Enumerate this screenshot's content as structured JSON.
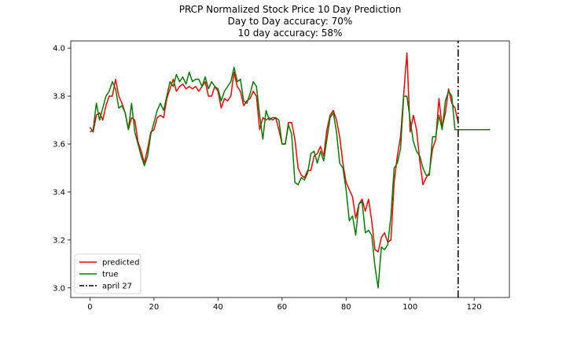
{
  "chart_data": {
    "type": "line",
    "title_lines": [
      "PRCP Normalized Stock Price 10 Day Prediction",
      "Day to Day accuracy: 70%",
      "10 day accuracy: 58%"
    ],
    "xlabel": "",
    "ylabel": "",
    "xlim": [
      -6,
      131
    ],
    "ylim": [
      2.96,
      4.03
    ],
    "x_ticks": [
      0,
      20,
      40,
      60,
      80,
      100,
      120
    ],
    "y_ticks": [
      3.0,
      3.2,
      3.4,
      3.6,
      3.8,
      4.0
    ],
    "x_tick_labels": [
      "0",
      "20",
      "40",
      "60",
      "80",
      "100",
      "120"
    ],
    "y_tick_labels": [
      "3.0",
      "3.2",
      "3.4",
      "3.6",
      "3.8",
      "4.0"
    ],
    "grid": false,
    "legend_position": "lower-left",
    "series": [
      {
        "name": "predicted",
        "color": "#ff0000",
        "style": "solid",
        "x": [
          0,
          1,
          2,
          3,
          4,
          5,
          6,
          7,
          8,
          9,
          10,
          11,
          12,
          13,
          14,
          15,
          16,
          17,
          18,
          19,
          20,
          21,
          22,
          23,
          24,
          25,
          26,
          27,
          28,
          29,
          30,
          31,
          32,
          33,
          34,
          35,
          36,
          37,
          38,
          39,
          40,
          41,
          42,
          43,
          44,
          45,
          46,
          47,
          48,
          49,
          50,
          51,
          52,
          53,
          54,
          55,
          56,
          57,
          58,
          59,
          60,
          61,
          62,
          63,
          64,
          65,
          66,
          67,
          68,
          69,
          70,
          71,
          72,
          73,
          74,
          75,
          76,
          77,
          78,
          79,
          80,
          81,
          82,
          83,
          84,
          85,
          86,
          87,
          88,
          89,
          90,
          91,
          92,
          93,
          94,
          95,
          96,
          97,
          98,
          99,
          100,
          101,
          102,
          103,
          104,
          105,
          106,
          107,
          108,
          109,
          110,
          111,
          112,
          113,
          114,
          115
        ],
        "y": [
          3.67,
          3.65,
          3.72,
          3.73,
          3.7,
          3.76,
          3.8,
          3.8,
          3.87,
          3.8,
          3.77,
          3.73,
          3.66,
          3.71,
          3.7,
          3.61,
          3.57,
          3.52,
          3.58,
          3.65,
          3.66,
          3.71,
          3.72,
          3.71,
          3.79,
          3.83,
          3.87,
          3.82,
          3.84,
          3.85,
          3.83,
          3.84,
          3.83,
          3.84,
          3.82,
          3.84,
          3.86,
          3.8,
          3.8,
          3.84,
          3.82,
          3.75,
          3.79,
          3.78,
          3.8,
          3.9,
          3.84,
          3.82,
          3.76,
          3.78,
          3.79,
          3.82,
          3.8,
          3.66,
          3.71,
          3.7,
          3.71,
          3.7,
          3.71,
          3.66,
          3.6,
          3.6,
          3.69,
          3.69,
          3.62,
          3.5,
          3.47,
          3.46,
          3.49,
          3.49,
          3.55,
          3.56,
          3.59,
          3.55,
          3.66,
          3.72,
          3.74,
          3.7,
          3.63,
          3.52,
          3.44,
          3.41,
          3.38,
          3.29,
          3.35,
          3.37,
          3.32,
          3.37,
          3.28,
          3.16,
          3.15,
          3.21,
          3.23,
          3.19,
          3.2,
          3.44,
          3.55,
          3.63,
          3.81,
          3.98,
          3.65,
          3.72,
          3.66,
          3.53,
          3.43,
          3.46,
          3.48,
          3.58,
          3.62,
          3.79,
          3.67,
          3.73,
          3.83,
          3.77,
          3.75,
          3.69
        ]
      },
      {
        "name": "true",
        "color": "#008000",
        "style": "solid",
        "x": [
          0,
          1,
          2,
          3,
          4,
          5,
          6,
          7,
          8,
          9,
          10,
          11,
          12,
          13,
          14,
          15,
          16,
          17,
          18,
          19,
          20,
          21,
          22,
          23,
          24,
          25,
          26,
          27,
          28,
          29,
          30,
          31,
          32,
          33,
          34,
          35,
          36,
          37,
          38,
          39,
          40,
          41,
          42,
          43,
          44,
          45,
          46,
          47,
          48,
          49,
          50,
          51,
          52,
          53,
          54,
          55,
          56,
          57,
          58,
          59,
          60,
          61,
          62,
          63,
          64,
          65,
          66,
          67,
          68,
          69,
          70,
          71,
          72,
          73,
          74,
          75,
          76,
          77,
          78,
          79,
          80,
          81,
          82,
          83,
          84,
          85,
          86,
          87,
          88,
          89,
          90,
          91,
          92,
          93,
          94,
          95,
          96,
          97,
          98,
          99,
          100,
          101,
          102,
          103,
          104,
          105,
          106,
          107,
          108,
          109,
          110,
          111,
          112,
          113,
          114,
          115,
          125
        ],
        "y": [
          3.65,
          3.66,
          3.77,
          3.7,
          3.75,
          3.8,
          3.82,
          3.86,
          3.83,
          3.75,
          3.76,
          3.73,
          3.66,
          3.77,
          3.65,
          3.6,
          3.55,
          3.51,
          3.55,
          3.64,
          3.69,
          3.74,
          3.77,
          3.74,
          3.8,
          3.86,
          3.84,
          3.89,
          3.86,
          3.88,
          3.85,
          3.9,
          3.86,
          3.87,
          3.87,
          3.84,
          3.88,
          3.83,
          3.86,
          3.84,
          3.83,
          3.78,
          3.82,
          3.84,
          3.86,
          3.92,
          3.86,
          3.87,
          3.78,
          3.77,
          3.81,
          3.86,
          3.84,
          3.72,
          3.62,
          3.74,
          3.7,
          3.71,
          3.71,
          3.7,
          3.6,
          3.6,
          3.68,
          3.64,
          3.44,
          3.43,
          3.46,
          3.45,
          3.48,
          3.56,
          3.57,
          3.52,
          3.57,
          3.53,
          3.62,
          3.71,
          3.73,
          3.65,
          3.52,
          3.5,
          3.41,
          3.28,
          3.3,
          3.22,
          3.35,
          3.36,
          3.23,
          3.24,
          3.22,
          3.09,
          3.0,
          3.17,
          3.16,
          3.18,
          3.3,
          3.5,
          3.52,
          3.58,
          3.8,
          3.8,
          3.7,
          3.61,
          3.57,
          3.55,
          3.5,
          3.47,
          3.47,
          3.63,
          3.63,
          3.72,
          3.66,
          3.78,
          3.82,
          3.8,
          3.66,
          3.66,
          3.66
        ]
      },
      {
        "name": "april 27",
        "color": "#000000",
        "style": "dashdot",
        "x": [
          115,
          115
        ],
        "y": [
          2.96,
          4.03
        ]
      }
    ]
  }
}
